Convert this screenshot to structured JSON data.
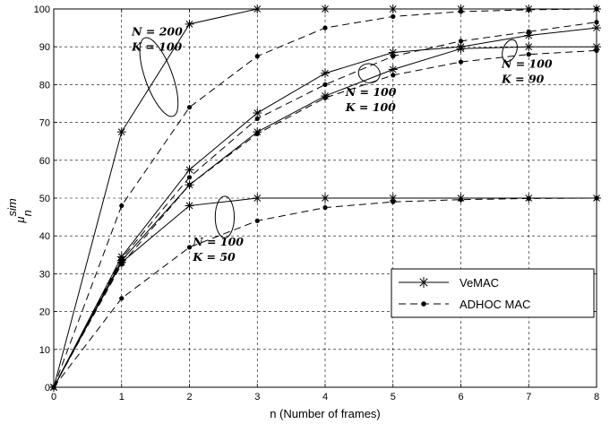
{
  "chart_data": {
    "type": "line",
    "xlabel": "n (Number of frames)",
    "ylabel": {
      "base": "μ",
      "sup": "sim",
      "sub": "n"
    },
    "xlim": [
      0,
      8
    ],
    "ylim": [
      0,
      100
    ],
    "xticks": [
      "0",
      "1",
      "2",
      "3",
      "4",
      "5",
      "6",
      "7",
      "8"
    ],
    "yticks": [
      "0",
      "10",
      "20",
      "30",
      "40",
      "50",
      "60",
      "70",
      "80",
      "90",
      "100"
    ],
    "grid": true,
    "legend_position": "bottom-right",
    "legend": [
      {
        "label": "VeMAC",
        "style": "solid",
        "marker": "star"
      },
      {
        "label": "ADHOC MAC",
        "style": "dashed",
        "marker": "dot"
      }
    ],
    "x": [
      0,
      1,
      2,
      3,
      4,
      5,
      6,
      7,
      8
    ],
    "series": [
      {
        "group": "N200K100",
        "style": "solid",
        "marker": "star",
        "values": [
          0,
          67.5,
          96,
          100,
          100,
          100,
          100,
          100,
          100
        ]
      },
      {
        "group": "N200K100",
        "style": "dashed",
        "marker": "dot",
        "values": [
          0,
          48,
          74,
          87.5,
          95,
          98,
          99.3,
          99.8,
          100
        ]
      },
      {
        "group": "N100K100",
        "style": "solid",
        "marker": "star",
        "values": [
          0,
          34.5,
          57.5,
          72.5,
          83,
          88.5,
          90,
          93,
          95
        ]
      },
      {
        "group": "N100K100",
        "style": "dashed",
        "marker": "dot",
        "values": [
          0,
          34,
          55.5,
          71,
          80,
          87.5,
          91.5,
          94,
          96.5
        ]
      },
      {
        "group": "N100K90",
        "style": "solid",
        "marker": "star",
        "values": [
          0,
          33.5,
          53.5,
          67.5,
          77,
          84,
          89.5,
          90,
          90
        ]
      },
      {
        "group": "N100K90",
        "style": "dashed",
        "marker": "dot",
        "values": [
          0,
          32.5,
          53.5,
          67,
          76.5,
          82.5,
          86,
          88,
          89
        ]
      },
      {
        "group": "N100K50",
        "style": "solid",
        "marker": "star",
        "values": [
          0,
          33,
          48,
          50,
          50,
          50,
          50,
          50,
          50
        ]
      },
      {
        "group": "N100K50",
        "style": "dashed",
        "marker": "dot",
        "values": [
          0,
          23.5,
          37,
          44,
          47.5,
          49,
          49.6,
          49.9,
          50
        ]
      }
    ],
    "annotations": [
      {
        "lines": [
          "N = 200",
          "K = 100"
        ],
        "x": 1.15,
        "y": 93,
        "ellipse": {
          "cx": 1.55,
          "cy": 82,
          "rx": 0.2,
          "ry": 11,
          "rot": -20
        }
      },
      {
        "lines": [
          "N = 100",
          "K = 100"
        ],
        "x": 4.3,
        "y": 77,
        "ellipse": {
          "cx": 4.65,
          "cy": 83,
          "rx": 0.16,
          "ry": 2.5,
          "rot": 15
        }
      },
      {
        "lines": [
          "N = 100",
          "K = 90"
        ],
        "x": 6.6,
        "y": 84.5,
        "ellipse": {
          "cx": 6.72,
          "cy": 89,
          "rx": 0.1,
          "ry": 3,
          "rot": 20
        }
      },
      {
        "lines": [
          "N = 100",
          "K = 50"
        ],
        "x": 2.05,
        "y": 37.5,
        "ellipse": {
          "cx": 2.52,
          "cy": 45,
          "rx": 0.14,
          "ry": 5.5,
          "rot": 0
        }
      }
    ]
  }
}
